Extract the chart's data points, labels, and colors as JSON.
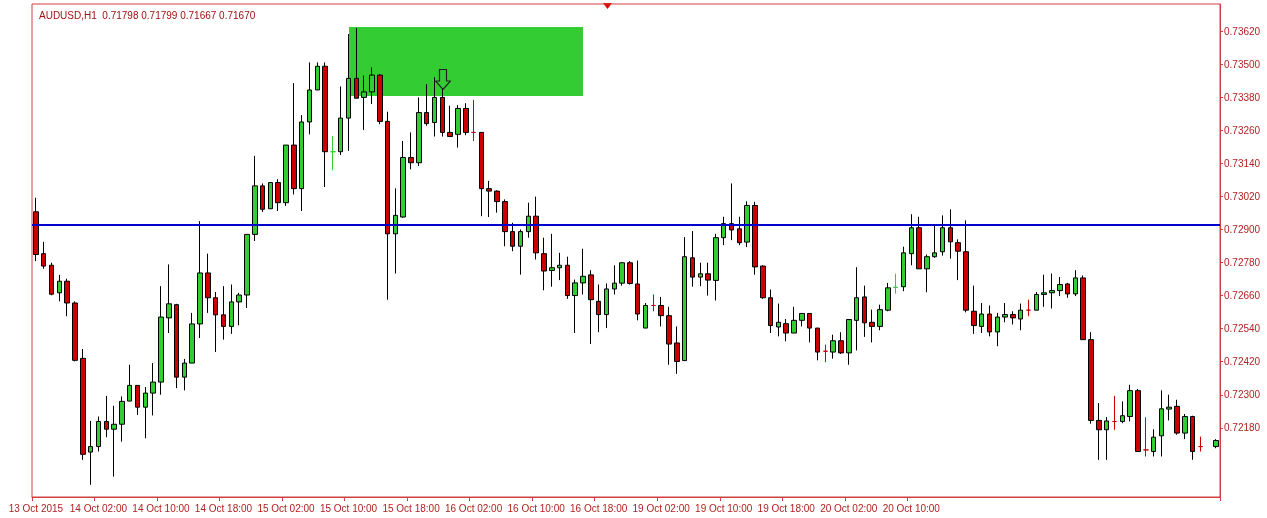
{
  "chart_data": {
    "type": "candlestick",
    "title": "AUDUSD,H1  0.71798 0.71799 0.71667 0.71670",
    "categories": [
      "13 Oct 2015",
      null,
      null,
      null,
      null,
      null,
      null,
      null,
      "14 Oct 02:00",
      null,
      null,
      null,
      null,
      null,
      null,
      null,
      "14 Oct 10:00",
      null,
      null,
      null,
      null,
      null,
      null,
      null,
      "14 Oct 18:00",
      null,
      null,
      null,
      null,
      null,
      null,
      null,
      "15 Oct 02:00",
      null,
      null,
      null,
      null,
      null,
      null,
      null,
      "15 Oct 10:00",
      null,
      null,
      null,
      null,
      null,
      null,
      null,
      "15 Oct 18:00",
      null,
      null,
      null,
      null,
      null,
      null,
      null,
      "16 Oct 02:00",
      null,
      null,
      null,
      null,
      null,
      null,
      null,
      "16 Oct 10:00",
      null,
      null,
      null,
      null,
      null,
      null,
      null,
      "16 Oct 18:00",
      null,
      null,
      null,
      null,
      null,
      null,
      null,
      "19 Oct 02:00",
      null,
      null,
      null,
      null,
      null,
      null,
      null,
      "19 Oct 10:00",
      null,
      null,
      null,
      null,
      null,
      null,
      null,
      "19 Oct 18:00",
      null,
      null,
      null,
      null,
      null,
      null,
      null,
      "20 Oct 02:00",
      null,
      null,
      null,
      null,
      null,
      null,
      null,
      "20 Oct 10:00",
      null,
      null,
      null,
      null,
      null,
      null,
      null,
      null,
      null,
      null,
      null,
      null,
      null,
      null,
      null,
      null,
      null,
      null,
      null,
      null,
      null,
      null,
      null,
      null,
      null,
      null,
      null,
      null,
      null,
      null,
      null,
      null,
      null,
      null,
      null,
      null,
      null,
      null,
      null
    ],
    "ohlc": [
      [
        0.72964,
        0.73015,
        0.72785,
        0.72809
      ],
      [
        0.72812,
        0.72855,
        0.72757,
        0.72767
      ],
      [
        0.7277,
        0.72779,
        0.72661,
        0.72665
      ],
      [
        0.7267,
        0.72735,
        0.72639,
        0.72712
      ],
      [
        0.72712,
        0.72721,
        0.72585,
        0.72633
      ],
      [
        0.72633,
        0.72639,
        0.72421,
        0.72425
      ],
      [
        0.72432,
        0.72466,
        0.72064,
        0.72084
      ],
      [
        0.72092,
        0.72205,
        0.71973,
        0.72112
      ],
      [
        0.72112,
        0.72221,
        0.72094,
        0.72203
      ],
      [
        0.72203,
        0.72296,
        0.72146,
        0.72175
      ],
      [
        0.72175,
        0.7226,
        0.72003,
        0.72193
      ],
      [
        0.72193,
        0.72294,
        0.7213,
        0.72276
      ],
      [
        0.72277,
        0.72409,
        0.72277,
        0.72334
      ],
      [
        0.72334,
        0.72334,
        0.72227,
        0.72255
      ],
      [
        0.72255,
        0.72328,
        0.72142,
        0.72306
      ],
      [
        0.72306,
        0.72415,
        0.72225,
        0.72346
      ],
      [
        0.72346,
        0.72694,
        0.723,
        0.72582
      ],
      [
        0.72579,
        0.72773,
        0.72524,
        0.7263
      ],
      [
        0.72627,
        0.7263,
        0.72324,
        0.72364
      ],
      [
        0.72364,
        0.7243,
        0.72316,
        0.72415
      ],
      [
        0.72415,
        0.72597,
        0.72415,
        0.72557
      ],
      [
        0.72557,
        0.7293,
        0.72506,
        0.72742
      ],
      [
        0.72742,
        0.72812,
        0.72597,
        0.72652
      ],
      [
        0.72652,
        0.72673,
        0.72455,
        0.7259
      ],
      [
        0.7259,
        0.72694,
        0.725,
        0.72548
      ],
      [
        0.72548,
        0.727,
        0.72521,
        0.72637
      ],
      [
        0.72637,
        0.7267,
        0.72552,
        0.72662
      ],
      [
        0.72662,
        0.72882,
        0.72615,
        0.72882
      ],
      [
        0.72882,
        0.73167,
        0.72858,
        0.73058
      ],
      [
        0.73058,
        0.73067,
        0.72963,
        0.72973
      ],
      [
        0.72975,
        0.73072,
        0.72975,
        0.7307
      ],
      [
        0.7307,
        0.73082,
        0.72967,
        0.72997
      ],
      [
        0.72997,
        0.73206,
        0.72985,
        0.73206
      ],
      [
        0.73206,
        0.73431,
        0.73027,
        0.73048
      ],
      [
        0.73048,
        0.73315,
        0.72967,
        0.7329
      ],
      [
        0.7329,
        0.73506,
        0.73245,
        0.73406
      ],
      [
        0.73406,
        0.73506,
        0.73406,
        0.73492
      ],
      [
        0.73492,
        0.73506,
        0.73054,
        0.73182
      ],
      [
        0.73182,
        0.73239,
        0.73115,
        0.73182
      ],
      [
        0.73182,
        0.73419,
        0.7317,
        0.73304
      ],
      [
        0.73304,
        0.73609,
        0.73185,
        0.73448
      ],
      [
        0.73448,
        0.7363,
        0.73376,
        0.73376
      ],
      [
        0.73379,
        0.73458,
        0.73261,
        0.73399
      ],
      [
        0.73399,
        0.73488,
        0.73355,
        0.7346
      ],
      [
        0.7346,
        0.73464,
        0.73282,
        0.73292
      ],
      [
        0.73292,
        0.73327,
        0.72645,
        0.72884
      ],
      [
        0.72884,
        0.73049,
        0.7274,
        0.72951
      ],
      [
        0.72945,
        0.73221,
        0.72942,
        0.73161
      ],
      [
        0.73161,
        0.73252,
        0.73118,
        0.73142
      ],
      [
        0.73142,
        0.73379,
        0.7313,
        0.73324
      ],
      [
        0.73324,
        0.73427,
        0.73276,
        0.73284
      ],
      [
        0.73288,
        0.73452,
        0.73237,
        0.73379
      ],
      [
        0.73379,
        0.73409,
        0.73237,
        0.73252
      ],
      [
        0.73252,
        0.73349,
        0.73237,
        0.73237
      ],
      [
        0.73245,
        0.73351,
        0.73197,
        0.73339
      ],
      [
        0.73339,
        0.73358,
        0.73242,
        0.73252
      ],
      [
        0.73252,
        0.7337,
        0.73221,
        0.73252
      ],
      [
        0.73252,
        0.73252,
        0.72948,
        0.73048
      ],
      [
        0.73048,
        0.73076,
        0.72945,
        0.73039
      ],
      [
        0.73039,
        0.73042,
        0.72961,
        0.73001
      ],
      [
        0.73001,
        0.73009,
        0.72839,
        0.72892
      ],
      [
        0.72892,
        0.72924,
        0.72821,
        0.72839
      ],
      [
        0.72839,
        0.729,
        0.72736,
        0.72892
      ],
      [
        0.72892,
        0.72997,
        0.7287,
        0.72948
      ],
      [
        0.72948,
        0.73019,
        0.72791,
        0.72815
      ],
      [
        0.72812,
        0.7287,
        0.72679,
        0.72749
      ],
      [
        0.72751,
        0.72884,
        0.72692,
        0.72761
      ],
      [
        0.72761,
        0.72815,
        0.72716,
        0.7277
      ],
      [
        0.7277,
        0.72801,
        0.72648,
        0.7266
      ],
      [
        0.7266,
        0.72718,
        0.72524,
        0.72706
      ],
      [
        0.72706,
        0.7283,
        0.72664,
        0.7273
      ],
      [
        0.72735,
        0.72752,
        0.72484,
        0.72645
      ],
      [
        0.72639,
        0.727,
        0.72527,
        0.72591
      ],
      [
        0.72591,
        0.72704,
        0.72542,
        0.72684
      ],
      [
        0.72684,
        0.7277,
        0.72664,
        0.72705
      ],
      [
        0.72705,
        0.72781,
        0.72696,
        0.72779
      ],
      [
        0.72779,
        0.72785,
        0.727,
        0.72704
      ],
      [
        0.72702,
        0.72787,
        0.7257,
        0.72593
      ],
      [
        0.72542,
        0.72633,
        0.72542,
        0.72624
      ],
      [
        0.72624,
        0.72664,
        0.72603,
        0.72624
      ],
      [
        0.72624,
        0.72655,
        0.72548,
        0.72587
      ],
      [
        0.72587,
        0.72619,
        0.72409,
        0.72484
      ],
      [
        0.72488,
        0.72548,
        0.72376,
        0.72421
      ],
      [
        0.72424,
        0.72872,
        0.72424,
        0.72801
      ],
      [
        0.72797,
        0.72894,
        0.72692,
        0.72727
      ],
      [
        0.72727,
        0.72779,
        0.72694,
        0.72739
      ],
      [
        0.72739,
        0.72779,
        0.7266,
        0.72716
      ],
      [
        0.72715,
        0.72884,
        0.72642,
        0.7287
      ],
      [
        0.7287,
        0.72946,
        0.72843,
        0.72921
      ],
      [
        0.72921,
        0.73067,
        0.72861,
        0.72898
      ],
      [
        0.72902,
        0.72946,
        0.72843,
        0.72852
      ],
      [
        0.72854,
        0.73002,
        0.72836,
        0.72987
      ],
      [
        0.72987,
        0.73,
        0.72736,
        0.72764
      ],
      [
        0.72767,
        0.7277,
        0.72648,
        0.72652
      ],
      [
        0.72652,
        0.72682,
        0.72524,
        0.72551
      ],
      [
        0.72546,
        0.72631,
        0.72512,
        0.72563
      ],
      [
        0.72558,
        0.72575,
        0.72494,
        0.72524
      ],
      [
        0.72524,
        0.72619,
        0.72524,
        0.7257
      ],
      [
        0.7257,
        0.72595,
        0.72548,
        0.72595
      ],
      [
        0.72595,
        0.72595,
        0.7249,
        0.72542
      ],
      [
        0.72542,
        0.72542,
        0.72425,
        0.72455
      ],
      [
        0.72458,
        0.72482,
        0.72418,
        0.72458
      ],
      [
        0.72455,
        0.72518,
        0.72431,
        0.72496
      ],
      [
        0.72496,
        0.72527,
        0.72448,
        0.72452
      ],
      [
        0.72452,
        0.72573,
        0.72409,
        0.72573
      ],
      [
        0.7257,
        0.72763,
        0.72461,
        0.72652
      ],
      [
        0.72655,
        0.72696,
        0.7251,
        0.72561
      ],
      [
        0.72563,
        0.72609,
        0.7249,
        0.72548
      ],
      [
        0.72548,
        0.72627,
        0.72534,
        0.72609
      ],
      [
        0.72607,
        0.72706,
        0.72603,
        0.72688
      ],
      [
        0.7269,
        0.72739,
        0.72667,
        0.7269
      ],
      [
        0.72692,
        0.72837,
        0.72676,
        0.72815
      ],
      [
        0.72812,
        0.72955,
        0.7277,
        0.72906
      ],
      [
        0.72906,
        0.72946,
        0.72757,
        0.72757
      ],
      [
        0.72757,
        0.72809,
        0.72672,
        0.72801
      ],
      [
        0.72801,
        0.72916,
        0.72797,
        0.72815
      ],
      [
        0.72819,
        0.72951,
        0.72805,
        0.72906
      ],
      [
        0.72906,
        0.72973,
        0.72794,
        0.72855
      ],
      [
        0.72852,
        0.72864,
        0.72716,
        0.72821
      ],
      [
        0.72819,
        0.72933,
        0.72599,
        0.72607
      ],
      [
        0.72603,
        0.72696,
        0.72521,
        0.72551
      ],
      [
        0.72548,
        0.72633,
        0.72524,
        0.72593
      ],
      [
        0.72593,
        0.72624,
        0.72512,
        0.72528
      ],
      [
        0.72528,
        0.72597,
        0.72476,
        0.72582
      ],
      [
        0.72582,
        0.72633,
        0.72563,
        0.72591
      ],
      [
        0.72591,
        0.72603,
        0.72555,
        0.72579
      ],
      [
        0.72575,
        0.72631,
        0.72534,
        0.72607
      ],
      [
        0.72607,
        0.72645,
        0.72585,
        0.72607
      ],
      [
        0.72607,
        0.72673,
        0.72607,
        0.72664
      ],
      [
        0.72664,
        0.72736,
        0.72619,
        0.7267
      ],
      [
        0.7267,
        0.7274,
        0.72613,
        0.72678
      ],
      [
        0.72678,
        0.72727,
        0.72658,
        0.727
      ],
      [
        0.72702,
        0.72706,
        0.72652,
        0.72666
      ],
      [
        0.72666,
        0.72752,
        0.72658,
        0.72724
      ],
      [
        0.72724,
        0.72733,
        0.725,
        0.725
      ],
      [
        0.725,
        0.72527,
        0.72195,
        0.72207
      ],
      [
        0.72207,
        0.7227,
        0.72064,
        0.72173
      ],
      [
        0.72173,
        0.72219,
        0.72064,
        0.72205
      ],
      [
        0.72203,
        0.72296,
        0.72173,
        0.72203
      ],
      [
        0.72203,
        0.72276,
        0.72197,
        0.72224
      ],
      [
        0.72221,
        0.72336,
        0.72203,
        0.72315
      ],
      [
        0.72315,
        0.72321,
        0.72094,
        0.72094
      ],
      [
        0.721,
        0.72218,
        0.72076,
        0.721
      ],
      [
        0.72094,
        0.72175,
        0.72076,
        0.72146
      ],
      [
        0.72151,
        0.72316,
        0.72076,
        0.72249
      ],
      [
        0.72248,
        0.723,
        0.72207,
        0.72255
      ],
      [
        0.72258,
        0.72282,
        0.72155,
        0.72161
      ],
      [
        0.72161,
        0.7223,
        0.72139,
        0.72221
      ],
      [
        0.72221,
        0.72224,
        0.72064,
        0.72094
      ],
      [
        0.72112,
        0.72148,
        0.72094,
        0.72112
      ],
      null,
      [
        0.72112,
        0.72139,
        0.72106,
        0.72134
      ]
    ],
    "colors": [
      "#cc0000",
      "#cc0000",
      "#cc0000",
      "#32cd32",
      "#cc0000",
      "#cc0000",
      "#cc0000",
      "#32cd32",
      "#32cd32",
      "#cc0000",
      "#32cd32",
      "#32cd32",
      "#32cd32",
      "#cc0000",
      "#32cd32",
      "#32cd32",
      "#32cd32",
      "#32cd32",
      "#cc0000",
      "#32cd32",
      "#32cd32",
      "#32cd32",
      "#cc0000",
      "#cc0000",
      "#cc0000",
      "#32cd32",
      "#32cd32",
      "#32cd32",
      "#32cd32",
      "#cc0000",
      "#32cd32",
      "#cc0000",
      "#32cd32",
      "#cc0000",
      "#32cd32",
      "#32cd32",
      "#32cd32",
      "#cc0000",
      "#32cd32",
      "#32cd32",
      "#32cd32",
      "#cc0000",
      "#32cd32",
      "#32cd32",
      "#cc0000",
      "#cc0000",
      "#32cd32",
      "#32cd32",
      "#cc0000",
      "#32cd32",
      "#cc0000",
      "#32cd32",
      "#cc0000",
      "#cc0000",
      "#32cd32",
      "#cc0000",
      "#cc0000",
      "#cc0000",
      "#cc0000",
      "#cc0000",
      "#cc0000",
      "#cc0000",
      "#32cd32",
      "#32cd32",
      "#cc0000",
      "#cc0000",
      "#32cd32",
      "#32cd32",
      "#cc0000",
      "#32cd32",
      "#32cd32",
      "#cc0000",
      "#cc0000",
      "#32cd32",
      "#32cd32",
      "#32cd32",
      "#cc0000",
      "#cc0000",
      "#32cd32",
      "#cc0000",
      "#cc0000",
      "#cc0000",
      "#cc0000",
      "#32cd32",
      "#cc0000",
      "#32cd32",
      "#cc0000",
      "#32cd32",
      "#32cd32",
      "#cc0000",
      "#cc0000",
      "#32cd32",
      "#cc0000",
      "#cc0000",
      "#cc0000",
      "#32cd32",
      "#cc0000",
      "#32cd32",
      "#32cd32",
      "#cc0000",
      "#cc0000",
      "#cc0000",
      "#32cd32",
      "#cc0000",
      "#32cd32",
      "#32cd32",
      "#cc0000",
      "#cc0000",
      "#32cd32",
      "#32cd32",
      "#32cd32",
      "#32cd32",
      "#32cd32",
      "#cc0000",
      "#32cd32",
      "#32cd32",
      "#32cd32",
      "#cc0000",
      "#cc0000",
      "#cc0000",
      "#cc0000",
      "#32cd32",
      "#cc0000",
      "#32cd32",
      "#32cd32",
      "#cc0000",
      "#32cd32",
      "#cc0000",
      "#32cd32",
      "#32cd32",
      "#32cd32",
      "#32cd32",
      "#cc0000",
      "#32cd32",
      "#cc0000",
      "#cc0000",
      "#cc0000",
      "#32cd32",
      "#cc0000",
      "#32cd32",
      "#32cd32",
      "#cc0000",
      "#cc0000",
      "#32cd32",
      "#32cd32",
      "#32cd32",
      "#cc0000",
      "#32cd32",
      "#cc0000",
      "#cc0000",
      null,
      "#32cd32"
    ],
    "ylim": [
      0.71929,
      0.73718
    ],
    "yticks": [
      {
        "value": 0.7218,
        "label": "0.72180"
      },
      {
        "value": 0.723,
        "label": "0.72300"
      },
      {
        "value": 0.7242,
        "label": "0.72420"
      },
      {
        "value": 0.7254,
        "label": "0.72540"
      },
      {
        "value": 0.7266,
        "label": "0.72660"
      },
      {
        "value": 0.7278,
        "label": "0.72780"
      },
      {
        "value": 0.729,
        "label": "0.72900"
      },
      {
        "value": 0.7302,
        "label": "0.73020"
      },
      {
        "value": 0.7314,
        "label": "0.73140"
      },
      {
        "value": 0.7326,
        "label": "0.73260"
      },
      {
        "value": 0.7338,
        "label": "0.73380"
      },
      {
        "value": 0.735,
        "label": "0.73500"
      },
      {
        "value": 0.7362,
        "label": "0.73620"
      }
    ],
    "ref_lines": [
      {
        "axis": "y",
        "value": 0.72918,
        "color": "#0000cc"
      }
    ]
  }
}
